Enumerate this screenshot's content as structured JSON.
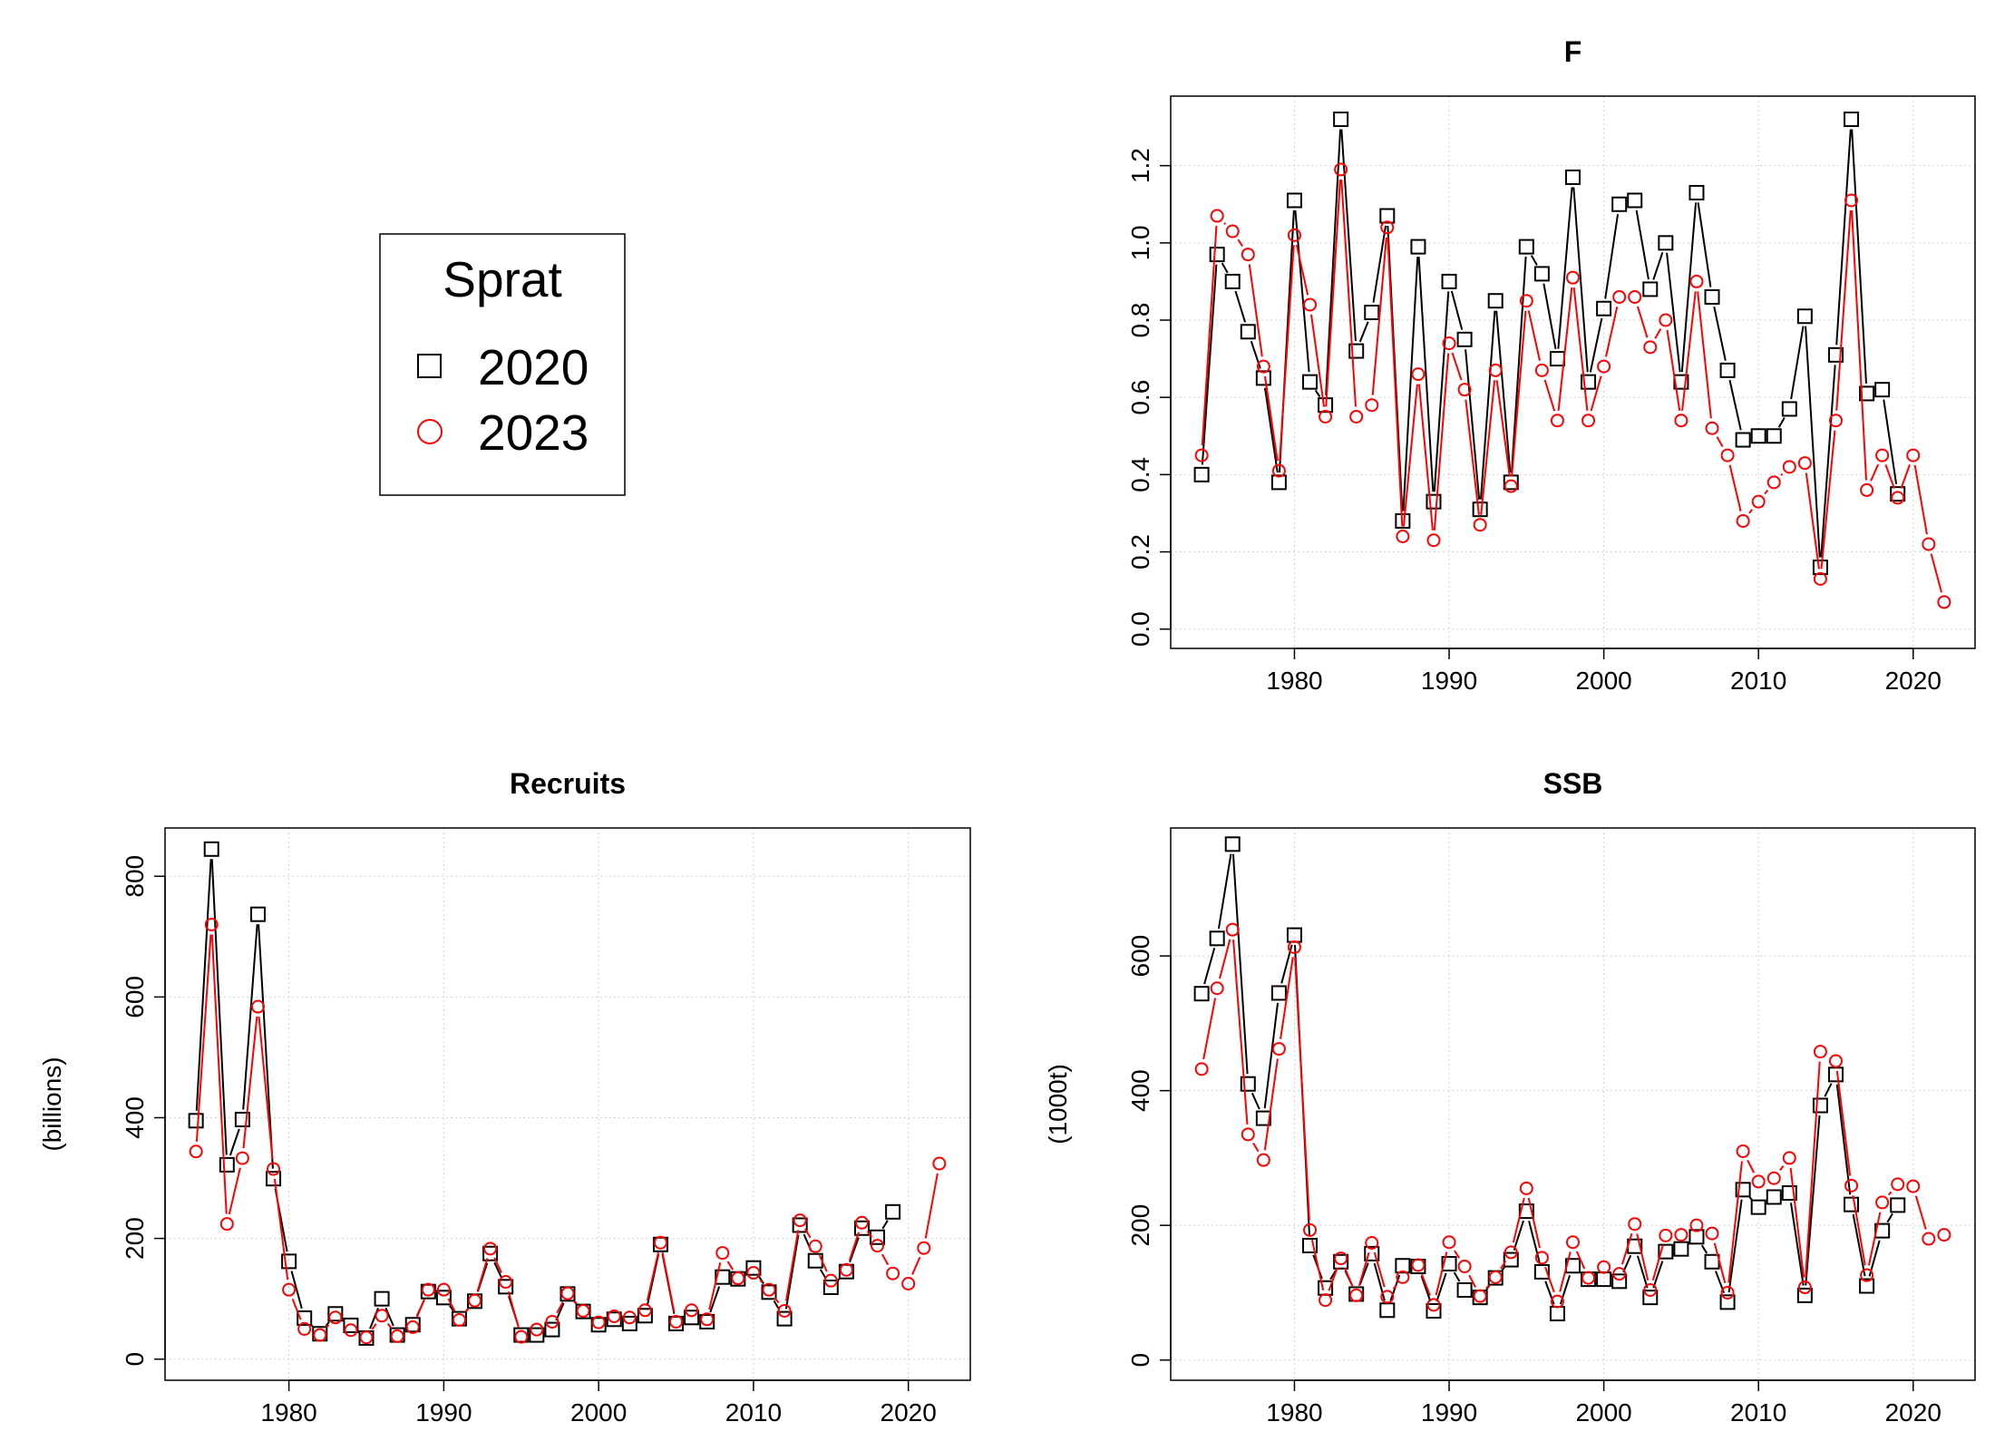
{
  "legend": {
    "title": "Sprat",
    "entries": [
      {
        "label": "2020",
        "marker": "square",
        "color": "#000000"
      },
      {
        "label": "2023",
        "marker": "circle",
        "color": "#ff0000"
      }
    ]
  },
  "colors": {
    "series_2020": "#000000",
    "series_2023": "#ff0000",
    "grid": "#d3d3d3"
  },
  "chart_data": [
    {
      "type": "line",
      "title": "F",
      "xlabel": "",
      "ylabel": "",
      "xlim": [
        1972,
        2024
      ],
      "ylim": [
        -0.05,
        1.38
      ],
      "x_ticks": [
        1980,
        1990,
        2000,
        2010,
        2020
      ],
      "y_ticks": [
        0.0,
        0.2,
        0.4,
        0.6,
        0.8,
        1.0,
        1.2
      ],
      "y_tick_labels": [
        "0.0",
        "0.2",
        "0.4",
        "0.6",
        "0.8",
        "1.0",
        "1.2"
      ],
      "grid": true,
      "series": [
        {
          "name": "2020",
          "marker": "square",
          "color": "#000000",
          "x": [
            1974,
            1975,
            1976,
            1977,
            1978,
            1979,
            1980,
            1981,
            1982,
            1983,
            1984,
            1985,
            1986,
            1987,
            1988,
            1989,
            1990,
            1991,
            1992,
            1993,
            1994,
            1995,
            1996,
            1997,
            1998,
            1999,
            2000,
            2001,
            2002,
            2003,
            2004,
            2005,
            2006,
            2007,
            2008,
            2009,
            2010,
            2011,
            2012,
            2013,
            2014,
            2015,
            2016,
            2017,
            2018,
            2019
          ],
          "values": [
            0.4,
            0.97,
            0.9,
            0.77,
            0.65,
            0.38,
            1.11,
            0.64,
            0.58,
            1.32,
            0.72,
            0.82,
            1.07,
            0.28,
            0.99,
            0.33,
            0.9,
            0.75,
            0.31,
            0.85,
            0.38,
            0.99,
            0.92,
            0.7,
            1.17,
            0.64,
            0.83,
            1.1,
            1.11,
            0.88,
            1.0,
            0.64,
            1.13,
            0.86,
            0.67,
            0.49,
            0.5,
            0.5,
            0.57,
            0.81,
            0.16,
            0.71,
            1.32,
            0.61,
            0.62,
            0.35
          ]
        },
        {
          "name": "2023",
          "marker": "circle",
          "color": "#ff0000",
          "x": [
            1974,
            1975,
            1976,
            1977,
            1978,
            1979,
            1980,
            1981,
            1982,
            1983,
            1984,
            1985,
            1986,
            1987,
            1988,
            1989,
            1990,
            1991,
            1992,
            1993,
            1994,
            1995,
            1996,
            1997,
            1998,
            1999,
            2000,
            2001,
            2002,
            2003,
            2004,
            2005,
            2006,
            2007,
            2008,
            2009,
            2010,
            2011,
            2012,
            2013,
            2014,
            2015,
            2016,
            2017,
            2018,
            2019,
            2020,
            2021,
            2022
          ],
          "values": [
            0.45,
            1.07,
            1.03,
            0.97,
            0.68,
            0.41,
            1.02,
            0.84,
            0.55,
            1.19,
            0.55,
            0.58,
            1.04,
            0.24,
            0.66,
            0.23,
            0.74,
            0.62,
            0.27,
            0.67,
            0.37,
            0.85,
            0.67,
            0.54,
            0.91,
            0.54,
            0.68,
            0.86,
            0.86,
            0.73,
            0.8,
            0.54,
            0.9,
            0.52,
            0.45,
            0.28,
            0.33,
            0.38,
            0.42,
            0.43,
            0.13,
            0.54,
            1.11,
            0.36,
            0.45,
            0.34,
            0.45,
            0.22,
            0.07
          ]
        }
      ]
    },
    {
      "type": "line",
      "title": "Recruits",
      "xlabel": "",
      "ylabel": "(billions)",
      "xlim": [
        1972,
        2024
      ],
      "ylim": [
        -35,
        880
      ],
      "x_ticks": [
        1980,
        1990,
        2000,
        2010,
        2020
      ],
      "y_ticks": [
        0,
        200,
        400,
        600,
        800
      ],
      "y_tick_labels": [
        "0",
        "200",
        "400",
        "600",
        "800"
      ],
      "grid": true,
      "series": [
        {
          "name": "2020",
          "marker": "square",
          "color": "#000000",
          "x": [
            1974,
            1975,
            1976,
            1977,
            1978,
            1979,
            1980,
            1981,
            1982,
            1983,
            1984,
            1985,
            1986,
            1987,
            1988,
            1989,
            1990,
            1991,
            1992,
            1993,
            1994,
            1995,
            1996,
            1997,
            1998,
            1999,
            2000,
            2001,
            2002,
            2003,
            2004,
            2005,
            2006,
            2007,
            2008,
            2009,
            2010,
            2011,
            2012,
            2013,
            2014,
            2015,
            2016,
            2017,
            2018,
            2019
          ],
          "values": [
            395,
            845,
            322,
            397,
            737,
            299,
            162,
            68,
            42,
            75,
            56,
            35,
            100,
            40,
            57,
            112,
            102,
            67,
            96,
            175,
            120,
            40,
            40,
            49,
            108,
            79,
            57,
            66,
            59,
            72,
            190,
            59,
            69,
            62,
            136,
            133,
            151,
            111,
            67,
            222,
            163,
            119,
            145,
            217,
            202,
            244
          ]
        },
        {
          "name": "2023",
          "marker": "circle",
          "color": "#ff0000",
          "x": [
            1974,
            1975,
            1976,
            1977,
            1978,
            1979,
            1980,
            1981,
            1982,
            1983,
            1984,
            1985,
            1986,
            1987,
            1988,
            1989,
            1990,
            1991,
            1992,
            1993,
            1994,
            1995,
            1996,
            1997,
            1998,
            1999,
            2000,
            2001,
            2002,
            2003,
            2004,
            2005,
            2006,
            2007,
            2008,
            2009,
            2010,
            2011,
            2012,
            2013,
            2014,
            2015,
            2016,
            2017,
            2018,
            2019,
            2020,
            2021,
            2022
          ],
          "values": [
            344,
            720,
            224,
            333,
            584,
            315,
            115,
            50,
            40,
            69,
            48,
            36,
            72,
            38,
            53,
            115,
            115,
            65,
            97,
            183,
            128,
            37,
            49,
            62,
            109,
            80,
            61,
            71,
            69,
            81,
            193,
            62,
            81,
            66,
            176,
            134,
            143,
            115,
            80,
            230,
            187,
            130,
            148,
            226,
            188,
            142,
            125,
            184,
            324
          ]
        }
      ]
    },
    {
      "type": "line",
      "title": "SSB",
      "xlabel": "",
      "ylabel": "(1000t)",
      "xlim": [
        1972,
        2024
      ],
      "ylim": [
        -30,
        790
      ],
      "x_ticks": [
        1980,
        1990,
        2000,
        2010,
        2020
      ],
      "y_ticks": [
        0,
        200,
        400,
        600
      ],
      "y_tick_labels": [
        "0",
        "200",
        "400",
        "600"
      ],
      "grid": true,
      "series": [
        {
          "name": "2020",
          "marker": "square",
          "color": "#000000",
          "x": [
            1974,
            1975,
            1976,
            1977,
            1978,
            1979,
            1980,
            1981,
            1982,
            1983,
            1984,
            1985,
            1986,
            1987,
            1988,
            1989,
            1990,
            1991,
            1992,
            1993,
            1994,
            1995,
            1996,
            1997,
            1998,
            1999,
            2000,
            2001,
            2002,
            2003,
            2004,
            2005,
            2006,
            2007,
            2008,
            2009,
            2010,
            2011,
            2012,
            2013,
            2014,
            2015,
            2016,
            2017,
            2018,
            2019
          ],
          "values": [
            544,
            626,
            766,
            410,
            359,
            545,
            631,
            170,
            107,
            146,
            98,
            158,
            74,
            140,
            139,
            73,
            143,
            104,
            93,
            122,
            149,
            221,
            131,
            69,
            140,
            120,
            120,
            117,
            169,
            93,
            161,
            165,
            183,
            146,
            86,
            253,
            227,
            242,
            248,
            96,
            378,
            424,
            231,
            110,
            192,
            230
          ]
        },
        {
          "name": "2023",
          "marker": "circle",
          "color": "#ff0000",
          "x": [
            1974,
            1975,
            1976,
            1977,
            1978,
            1979,
            1980,
            1981,
            1982,
            1983,
            1984,
            1985,
            1986,
            1987,
            1988,
            1989,
            1990,
            1991,
            1992,
            1993,
            1994,
            1995,
            1996,
            1997,
            1998,
            1999,
            2000,
            2001,
            2002,
            2003,
            2004,
            2005,
            2006,
            2007,
            2008,
            2009,
            2010,
            2011,
            2012,
            2013,
            2014,
            2015,
            2016,
            2017,
            2018,
            2019,
            2020,
            2021,
            2022
          ],
          "values": [
            432,
            552,
            639,
            335,
            297,
            462,
            613,
            193,
            89,
            151,
            96,
            174,
            94,
            123,
            141,
            82,
            175,
            139,
            95,
            123,
            160,
            255,
            152,
            87,
            175,
            122,
            138,
            128,
            202,
            104,
            185,
            186,
            200,
            188,
            100,
            310,
            265,
            270,
            300,
            108,
            458,
            444,
            259,
            126,
            234,
            261,
            258,
            180,
            186
          ]
        }
      ]
    }
  ]
}
